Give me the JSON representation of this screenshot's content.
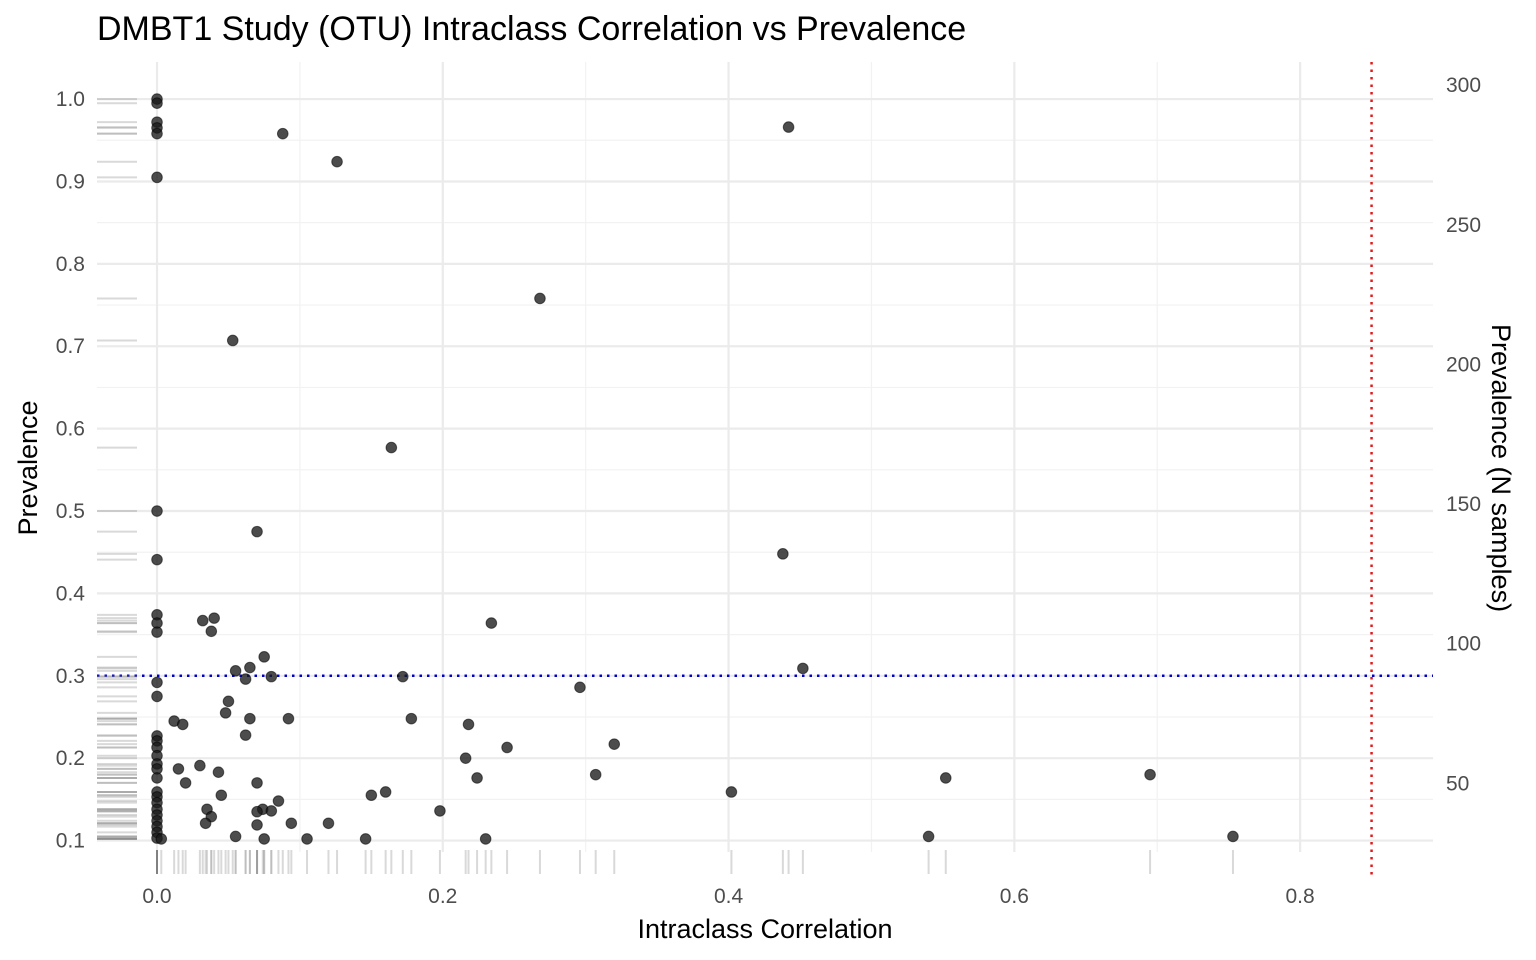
{
  "chart_data": {
    "type": "scatter",
    "title": "DMBT1 Study (OTU) Intraclass Correlation vs Prevalence",
    "xlabel": "Intraclass Correlation",
    "ylabel": "Prevalence",
    "y2label": "Prevalence (N samples)",
    "xlim": [
      -0.042,
      0.893
    ],
    "ylim": [
      0.057,
      1.045
    ],
    "x_ticks": [
      0.0,
      0.2,
      0.4,
      0.6,
      0.8
    ],
    "x_tick_labels": [
      "0.0",
      "0.2",
      "0.4",
      "0.6",
      "0.8"
    ],
    "y_ticks": [
      0.1,
      0.2,
      0.3,
      0.4,
      0.5,
      0.6,
      0.7,
      0.8,
      0.9,
      1.0
    ],
    "y_tick_labels": [
      "0.1",
      "0.2",
      "0.3",
      "0.4",
      "0.5",
      "0.6",
      "0.7",
      "0.8",
      "0.9",
      "1.0"
    ],
    "y2_ticks": [
      50,
      100,
      150,
      200,
      250,
      300
    ],
    "y2_tick_labels": [
      "50",
      "100",
      "150",
      "200",
      "250",
      "300"
    ],
    "y2_scale": 295,
    "grid": true,
    "reference_lines": [
      {
        "orientation": "horizontal",
        "value": 0.3,
        "color": "#0000cc",
        "style": "dotted"
      },
      {
        "orientation": "vertical",
        "value": 0.85,
        "color": "#e31a1c",
        "style": "dotted"
      }
    ],
    "point_color": "#1a1a1a",
    "rug_color": "#808080",
    "points": [
      {
        "x": 0.0,
        "y": 1.0
      },
      {
        "x": 0.0,
        "y": 0.995
      },
      {
        "x": 0.0,
        "y": 0.972
      },
      {
        "x": 0.0,
        "y": 0.965
      },
      {
        "x": 0.0,
        "y": 0.958
      },
      {
        "x": 0.0,
        "y": 0.905
      },
      {
        "x": 0.0,
        "y": 0.5
      },
      {
        "x": 0.0,
        "y": 0.441
      },
      {
        "x": 0.0,
        "y": 0.374
      },
      {
        "x": 0.0,
        "y": 0.364
      },
      {
        "x": 0.0,
        "y": 0.353
      },
      {
        "x": 0.0,
        "y": 0.292
      },
      {
        "x": 0.0,
        "y": 0.275
      },
      {
        "x": 0.0,
        "y": 0.227
      },
      {
        "x": 0.0,
        "y": 0.221
      },
      {
        "x": 0.0,
        "y": 0.213
      },
      {
        "x": 0.0,
        "y": 0.203
      },
      {
        "x": 0.0,
        "y": 0.193
      },
      {
        "x": 0.0,
        "y": 0.187
      },
      {
        "x": 0.0,
        "y": 0.176
      },
      {
        "x": 0.0,
        "y": 0.159
      },
      {
        "x": 0.0,
        "y": 0.153
      },
      {
        "x": 0.0,
        "y": 0.146
      },
      {
        "x": 0.0,
        "y": 0.138
      },
      {
        "x": 0.0,
        "y": 0.131
      },
      {
        "x": 0.0,
        "y": 0.124
      },
      {
        "x": 0.0,
        "y": 0.117
      },
      {
        "x": 0.0,
        "y": 0.11
      },
      {
        "x": 0.0,
        "y": 0.103
      },
      {
        "x": 0.003,
        "y": 0.102
      },
      {
        "x": 0.088,
        "y": 0.958
      },
      {
        "x": 0.126,
        "y": 0.924
      },
      {
        "x": 0.442,
        "y": 0.966
      },
      {
        "x": 0.268,
        "y": 0.758
      },
      {
        "x": 0.053,
        "y": 0.707
      },
      {
        "x": 0.164,
        "y": 0.577
      },
      {
        "x": 0.07,
        "y": 0.475
      },
      {
        "x": 0.438,
        "y": 0.448
      },
      {
        "x": 0.234,
        "y": 0.364
      },
      {
        "x": 0.032,
        "y": 0.367
      },
      {
        "x": 0.04,
        "y": 0.37
      },
      {
        "x": 0.038,
        "y": 0.354
      },
      {
        "x": 0.075,
        "y": 0.323
      },
      {
        "x": 0.055,
        "y": 0.306
      },
      {
        "x": 0.065,
        "y": 0.31
      },
      {
        "x": 0.452,
        "y": 0.309
      },
      {
        "x": 0.172,
        "y": 0.299
      },
      {
        "x": 0.08,
        "y": 0.299
      },
      {
        "x": 0.062,
        "y": 0.296
      },
      {
        "x": 0.296,
        "y": 0.286
      },
      {
        "x": 0.05,
        "y": 0.269
      },
      {
        "x": 0.048,
        "y": 0.255
      },
      {
        "x": 0.065,
        "y": 0.248
      },
      {
        "x": 0.092,
        "y": 0.248
      },
      {
        "x": 0.178,
        "y": 0.248
      },
      {
        "x": 0.012,
        "y": 0.245
      },
      {
        "x": 0.018,
        "y": 0.241
      },
      {
        "x": 0.218,
        "y": 0.241
      },
      {
        "x": 0.062,
        "y": 0.228
      },
      {
        "x": 0.32,
        "y": 0.217
      },
      {
        "x": 0.245,
        "y": 0.213
      },
      {
        "x": 0.216,
        "y": 0.2
      },
      {
        "x": 0.03,
        "y": 0.191
      },
      {
        "x": 0.015,
        "y": 0.187
      },
      {
        "x": 0.043,
        "y": 0.183
      },
      {
        "x": 0.307,
        "y": 0.18
      },
      {
        "x": 0.695,
        "y": 0.18
      },
      {
        "x": 0.224,
        "y": 0.176
      },
      {
        "x": 0.552,
        "y": 0.176
      },
      {
        "x": 0.02,
        "y": 0.17
      },
      {
        "x": 0.07,
        "y": 0.17
      },
      {
        "x": 0.16,
        "y": 0.159
      },
      {
        "x": 0.402,
        "y": 0.159
      },
      {
        "x": 0.15,
        "y": 0.155
      },
      {
        "x": 0.045,
        "y": 0.155
      },
      {
        "x": 0.085,
        "y": 0.148
      },
      {
        "x": 0.035,
        "y": 0.138
      },
      {
        "x": 0.074,
        "y": 0.138
      },
      {
        "x": 0.198,
        "y": 0.136
      },
      {
        "x": 0.07,
        "y": 0.135
      },
      {
        "x": 0.08,
        "y": 0.136
      },
      {
        "x": 0.038,
        "y": 0.129
      },
      {
        "x": 0.034,
        "y": 0.121
      },
      {
        "x": 0.07,
        "y": 0.119
      },
      {
        "x": 0.094,
        "y": 0.121
      },
      {
        "x": 0.12,
        "y": 0.121
      },
      {
        "x": 0.055,
        "y": 0.105
      },
      {
        "x": 0.075,
        "y": 0.102
      },
      {
        "x": 0.105,
        "y": 0.102
      },
      {
        "x": 0.146,
        "y": 0.102
      },
      {
        "x": 0.23,
        "y": 0.102
      },
      {
        "x": 0.54,
        "y": 0.105
      },
      {
        "x": 0.753,
        "y": 0.105
      }
    ]
  }
}
